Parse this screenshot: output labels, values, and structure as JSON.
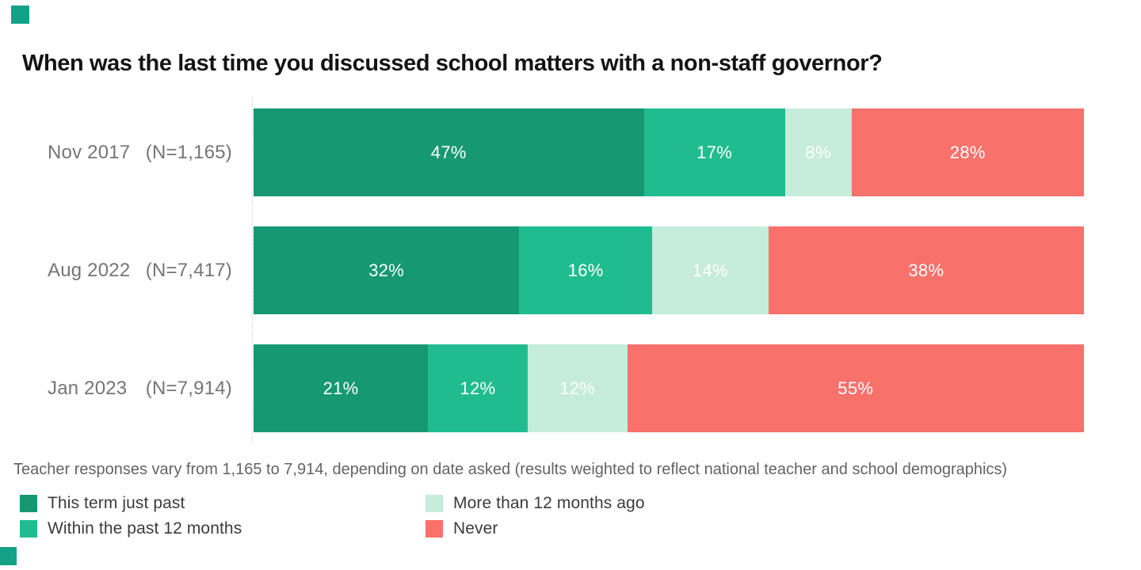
{
  "title": "When was the last time you discussed school matters with a non-staff governor?",
  "footnote": "Teacher responses vary from 1,165 to 7,914, depending on date asked (results weighted to reflect national teacher and school demographics)",
  "brand": {
    "mark_color": "#13A287"
  },
  "chart_data": {
    "type": "bar",
    "orientation": "horizontal",
    "stacked": true,
    "unit": "%",
    "xlim": [
      0,
      100
    ],
    "grid": false,
    "legend_position": "bottom-left",
    "legend_columns": 2,
    "categories": [
      "Nov 2017",
      "Aug 2022",
      "Jan 2023"
    ],
    "sample_sizes": [
      "(N=1,165)",
      "(N=7,417)",
      "(N=7,914)"
    ],
    "series": [
      {
        "name": "This term just past",
        "color": "#169873",
        "values": [
          47,
          32,
          21
        ]
      },
      {
        "name": "Within the past 12 months",
        "color": "#20BC90",
        "values": [
          17,
          16,
          12
        ]
      },
      {
        "name": "More than 12 months ago",
        "color": "#C6ECDC",
        "values": [
          8,
          14,
          12
        ]
      },
      {
        "name": "Never",
        "color": "#F8716B",
        "values": [
          28,
          38,
          55
        ]
      }
    ]
  }
}
